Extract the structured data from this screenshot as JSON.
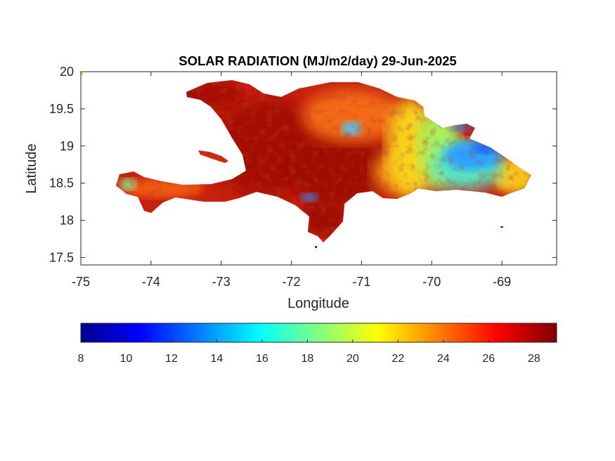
{
  "figure": {
    "title": "SOLAR RADIATION (MJ/m2/day) 29-Jun-2025",
    "xlabel": "Longitude",
    "ylabel": "Latitude"
  },
  "chart_data": {
    "type": "heatmap",
    "title": "SOLAR RADIATION (MJ/m2/day) 29-Jun-2025",
    "xlabel": "Longitude",
    "ylabel": "Latitude",
    "xlim": [
      -75,
      -68.22
    ],
    "ylim": [
      17.4,
      20
    ],
    "x_ticks": [
      -75,
      -74,
      -73,
      -72,
      -71,
      -70,
      -69
    ],
    "x_tick_labels": [
      "-75",
      "-74",
      "-73",
      "-72",
      "-71",
      "-70",
      "-69"
    ],
    "y_ticks": [
      17.5,
      18,
      18.5,
      19,
      19.5,
      20
    ],
    "y_tick_labels": [
      "17.5",
      "18",
      "18.5",
      "19",
      "19.5",
      "20"
    ],
    "grid": false,
    "colormap": "jet",
    "colorbar": {
      "orientation": "horizontal",
      "placement": "bottom",
      "range": [
        8,
        29
      ],
      "ticks": [
        8,
        10,
        12,
        14,
        16,
        18,
        20,
        22,
        24,
        26,
        28
      ],
      "tick_labels": [
        "8",
        "10",
        "12",
        "14",
        "16",
        "18",
        "20",
        "22",
        "24",
        "26",
        "28"
      ]
    },
    "regions": [
      {
        "name": "western Haiti",
        "approx_value": 27
      },
      {
        "name": "southern Haiti peninsula",
        "approx_value": 25
      },
      {
        "name": "central Hispaniola",
        "approx_value": 27.5
      },
      {
        "name": "north-central Dominican Republic",
        "approx_value": 21
      },
      {
        "name": "eastern Dominican Republic",
        "approx_value": 16
      },
      {
        "name": "far eastern tip",
        "approx_value": 22
      }
    ],
    "colors": {
      "low": "#00008f",
      "mid": "#80ff80",
      "high": "#800000"
    }
  }
}
